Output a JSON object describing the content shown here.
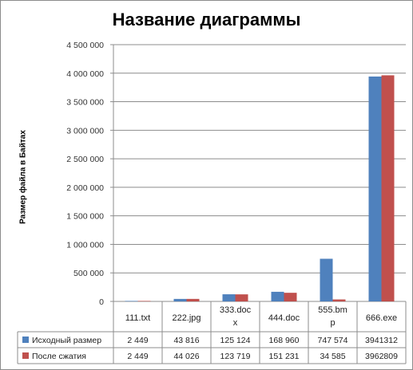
{
  "chart_data": {
    "type": "bar",
    "title": "Название диаграммы",
    "ylabel": "Размер файла в Байтах",
    "ylim": [
      0,
      4500000
    ],
    "yticks": [
      0,
      500000,
      1000000,
      1500000,
      2000000,
      2500000,
      3000000,
      3500000,
      4000000,
      4500000
    ],
    "ytick_labels": [
      "0",
      "500 000",
      "1 000 000",
      "1 500 000",
      "2 000 000",
      "2 500 000",
      "3 000 000",
      "3 500 000",
      "4 000 000",
      "4 500 000"
    ],
    "categories": [
      [
        "111.txt"
      ],
      [
        "222.jpg"
      ],
      [
        "333.doc",
        "x"
      ],
      [
        "444.doc"
      ],
      [
        "555.bm",
        "p"
      ],
      [
        "666.exe"
      ]
    ],
    "series": [
      {
        "name": "Исходный размер",
        "color": "#4f81bd",
        "values": [
          2449,
          43816,
          125124,
          168960,
          747574,
          3941312
        ],
        "labels": [
          "2 449",
          "43 816",
          "125 124",
          "168 960",
          "747 574",
          "3941312"
        ]
      },
      {
        "name": "После сжатия",
        "color": "#c0504d",
        "values": [
          2449,
          44026,
          123719,
          151231,
          34585,
          3962809
        ],
        "labels": [
          "2 449",
          "44 026",
          "123 719",
          "151 231",
          "34 585",
          "3962809"
        ]
      }
    ],
    "grid": true,
    "legend": "table"
  }
}
